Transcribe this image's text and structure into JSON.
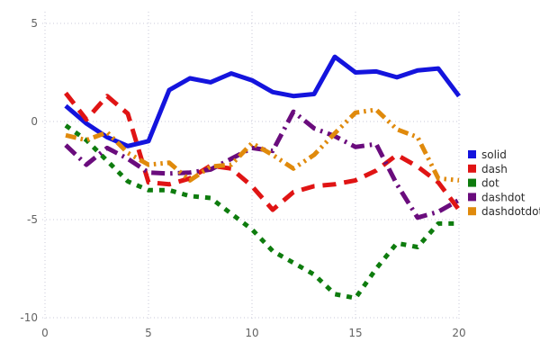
{
  "chart_data": {
    "type": "line",
    "title": "",
    "xlabel": "",
    "ylabel": "",
    "xlim": [
      0,
      20
    ],
    "ylim": [
      -10,
      5
    ],
    "xticks": [
      0,
      5,
      10,
      15,
      20
    ],
    "yticks": [
      5,
      0,
      -5,
      -10
    ],
    "grid": "dotted",
    "grid_color": "#c9c9da",
    "background": "#ffffff",
    "legend_position": "right",
    "x": [
      1,
      2,
      3,
      4,
      5,
      6,
      7,
      8,
      9,
      10,
      11,
      12,
      13,
      14,
      15,
      16,
      17,
      18,
      19,
      20
    ],
    "series": [
      {
        "name": "solid",
        "line_style": "solid",
        "color": "#1414dd",
        "values": [
          0.8,
          -0.1,
          -0.8,
          -1.25,
          -1.0,
          1.6,
          2.2,
          2.0,
          2.45,
          2.1,
          1.5,
          1.3,
          1.4,
          3.3,
          2.5,
          2.55,
          2.25,
          2.6,
          2.7,
          1.3
        ]
      },
      {
        "name": "dash",
        "line_style": "dash",
        "color": "#e01414",
        "values": [
          1.45,
          0.1,
          1.3,
          0.4,
          -3.1,
          -3.2,
          -2.9,
          -2.25,
          -2.4,
          -3.3,
          -4.5,
          -3.6,
          -3.3,
          -3.2,
          -3.0,
          -2.5,
          -1.7,
          -2.3,
          -3.1,
          -4.5
        ]
      },
      {
        "name": "dot",
        "line_style": "dot",
        "color": "#0e7c0e",
        "values": [
          -0.2,
          -0.95,
          -2.0,
          -3.05,
          -3.5,
          -3.5,
          -3.8,
          -3.9,
          -4.7,
          -5.5,
          -6.6,
          -7.2,
          -7.8,
          -8.8,
          -9.0,
          -7.5,
          -6.2,
          -6.4,
          -5.2,
          -5.2
        ]
      },
      {
        "name": "dashdot",
        "line_style": "dashdot",
        "color": "#6a0c7d",
        "values": [
          -1.2,
          -2.2,
          -1.35,
          -1.9,
          -2.6,
          -2.65,
          -2.6,
          -2.45,
          -1.9,
          -1.35,
          -1.5,
          0.5,
          -0.35,
          -0.75,
          -1.3,
          -1.15,
          -3.2,
          -4.9,
          -4.6,
          -4.0
        ]
      },
      {
        "name": "dashdotdot",
        "line_style": "dashdotdot",
        "color": "#e08a0c",
        "values": [
          -0.7,
          -0.95,
          -0.55,
          -1.6,
          -2.2,
          -2.1,
          -3.0,
          -2.3,
          -2.2,
          -1.1,
          -1.7,
          -2.4,
          -1.7,
          -0.6,
          0.45,
          0.6,
          -0.4,
          -0.8,
          -2.9,
          -3.0
        ]
      }
    ],
    "legend": [
      {
        "label": "solid",
        "color": "#1414dd"
      },
      {
        "label": "dash",
        "color": "#e01414"
      },
      {
        "label": "dot",
        "color": "#0e7c0e"
      },
      {
        "label": "dashdot",
        "color": "#6a0c7d"
      },
      {
        "label": "dashdotdot",
        "color": "#e08a0c"
      }
    ]
  }
}
